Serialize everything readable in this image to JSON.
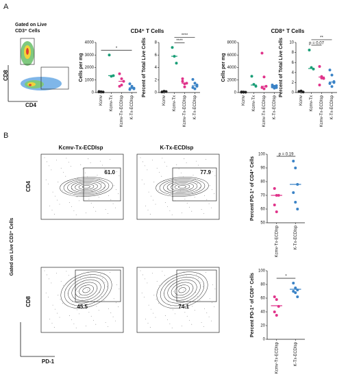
{
  "panels": {
    "a_label": "A",
    "b_label": "B",
    "gate_a": "Gated on Live\nCD3⁺ Cells",
    "a_y": "CD8",
    "a_x": "CD4",
    "cd4_title": "CD4⁺ T Cells",
    "cd8_title": "CD8⁺ T Cells",
    "gate_b": "Gated on Live CD3⁺ Cells",
    "b_col1": "Kcmv-Tx-ECDIsp",
    "b_col2": "K-Tx-ECDIsp",
    "b_y1": "CD4",
    "b_y2": "CD8",
    "b_x": "PD-1",
    "flow": [
      "61.0",
      "77.9",
      "45.5",
      "74.1"
    ]
  },
  "chart_data": [
    {
      "type": "dot",
      "ylabel": "Cells per mg",
      "categories": [
        "Kcmv",
        "Kcmv-Tx",
        "Kcmv-Tx-ECDIsp",
        "K-Tx-ECDIsp"
      ],
      "colors": [
        "#222222",
        "#1a9e77",
        "#e0338a",
        "#3b83c6"
      ],
      "values": [
        [
          50,
          60,
          40,
          80
        ],
        [
          3000,
          1300,
          1350
        ],
        [
          1500,
          1100,
          900,
          500,
          600
        ],
        [
          700,
          500,
          300,
          250,
          400,
          350
        ]
      ],
      "medians": [
        50,
        1350,
        900,
        380
      ],
      "ylim": [
        0,
        4000
      ],
      "yticks": [
        0,
        1000,
        2000,
        3000,
        4000
      ],
      "annotations": [
        {
          "text": "*",
          "from": 0,
          "to": 3
        }
      ]
    },
    {
      "type": "dot",
      "ylabel": "Percent of Total Live Cells",
      "categories": [
        "Kcmv",
        "Kcmv-Tx",
        "Kcmv-Tx-ECDIsp",
        "K-Tx-ECDIsp"
      ],
      "colors": [
        "#222222",
        "#1a9e77",
        "#e0338a",
        "#3b83c6"
      ],
      "values": [
        [
          0.1,
          0.2,
          0.15,
          0.1
        ],
        [
          7.2,
          5.8,
          4.7
        ],
        [
          2.2,
          1.4,
          1.5,
          1.8,
          0.9
        ],
        [
          2.1,
          1.5,
          1.2,
          0.8,
          0.6,
          1.0
        ]
      ],
      "medians": [
        0.15,
        5.8,
        1.5,
        1.1
      ],
      "ylim": [
        0,
        8
      ],
      "yticks": [
        0,
        2,
        4,
        6,
        8
      ],
      "annotations": [
        {
          "text": "****",
          "from": 1,
          "to": 2
        },
        {
          "text": "****",
          "from": 1,
          "to": 3
        }
      ]
    },
    {
      "type": "dot",
      "ylabel": "Cells per mg",
      "categories": [
        "Kcmv",
        "Kcmv-Tx",
        "Kcmv-Tx-ECDIsp",
        "K-Tx-ECDIsp"
      ],
      "colors": [
        "#222222",
        "#1a9e77",
        "#e0338a",
        "#3b83c6"
      ],
      "values": [
        [
          50,
          80,
          60,
          100
        ],
        [
          2600,
          1300,
          1000
        ],
        [
          6300,
          2500,
          1000,
          800,
          600
        ],
        [
          1200,
          1000,
          800,
          900,
          700,
          1100
        ]
      ],
      "medians": [
        60,
        1200,
        1000,
        950
      ],
      "ylim": [
        0,
        8000
      ],
      "yticks": [
        0,
        2000,
        4000,
        6000,
        8000
      ],
      "annotations": []
    },
    {
      "type": "dot",
      "ylabel": "Percent of Total Live Cells",
      "categories": [
        "Kcmv",
        "Kcmv-Tx",
        "Kcmv-Tx-ECDIsp",
        "K-Tx-ECDIsp"
      ],
      "colors": [
        "#222222",
        "#1a9e77",
        "#e0338a",
        "#3b83c6"
      ],
      "values": [
        [
          0.2,
          0.3,
          0.1,
          0.2
        ],
        [
          8.5,
          5,
          4.7
        ],
        [
          5.2,
          3.2,
          2.8,
          1.5,
          2.9
        ],
        [
          4.5,
          3.5,
          2,
          1.8,
          1.2,
          2.2
        ]
      ],
      "medians": [
        0.2,
        4.8,
        3.1,
        2.1
      ],
      "ylim": [
        0,
        10
      ],
      "yticks": [
        0,
        2,
        4,
        6,
        8,
        10
      ],
      "annotations": [
        {
          "text": "p = 0.07",
          "from": 1,
          "to": 2
        },
        {
          "text": "**",
          "from": 1,
          "to": 3
        }
      ]
    },
    {
      "type": "dot",
      "ylabel": "Percent PD-1⁺ of CD4⁺ Cells",
      "categories": [
        "Kcmv-Tx-ECDIsp",
        "K-Tx-ECDIsp"
      ],
      "colors": [
        "#e0338a",
        "#3b83c6"
      ],
      "values": [
        [
          75,
          70,
          70,
          63,
          58
        ],
        [
          95,
          90,
          78,
          72,
          65,
          60
        ]
      ],
      "medians": [
        70,
        78
      ],
      "ylim": [
        50,
        100
      ],
      "yticks": [
        50,
        60,
        70,
        80,
        90,
        100
      ],
      "annotations": [
        {
          "text": "p = 0.19",
          "from": 0,
          "to": 1
        }
      ]
    },
    {
      "type": "dot",
      "ylabel": "Percent PD-1⁺ of CD8⁺ Cells",
      "categories": [
        "Kcmv-Tx-ECDIsp",
        "K-Tx-ECDIsp"
      ],
      "colors": [
        "#e0338a",
        "#3b83c6"
      ],
      "values": [
        [
          62,
          58,
          48,
          40,
          35
        ],
        [
          82,
          75,
          72,
          70,
          68,
          62
        ]
      ],
      "medians": [
        49,
        73
      ],
      "ylim": [
        0,
        100
      ],
      "yticks": [
        0,
        20,
        40,
        60,
        80,
        100
      ],
      "annotations": [
        {
          "text": "*",
          "from": 0,
          "to": 1
        }
      ]
    }
  ]
}
